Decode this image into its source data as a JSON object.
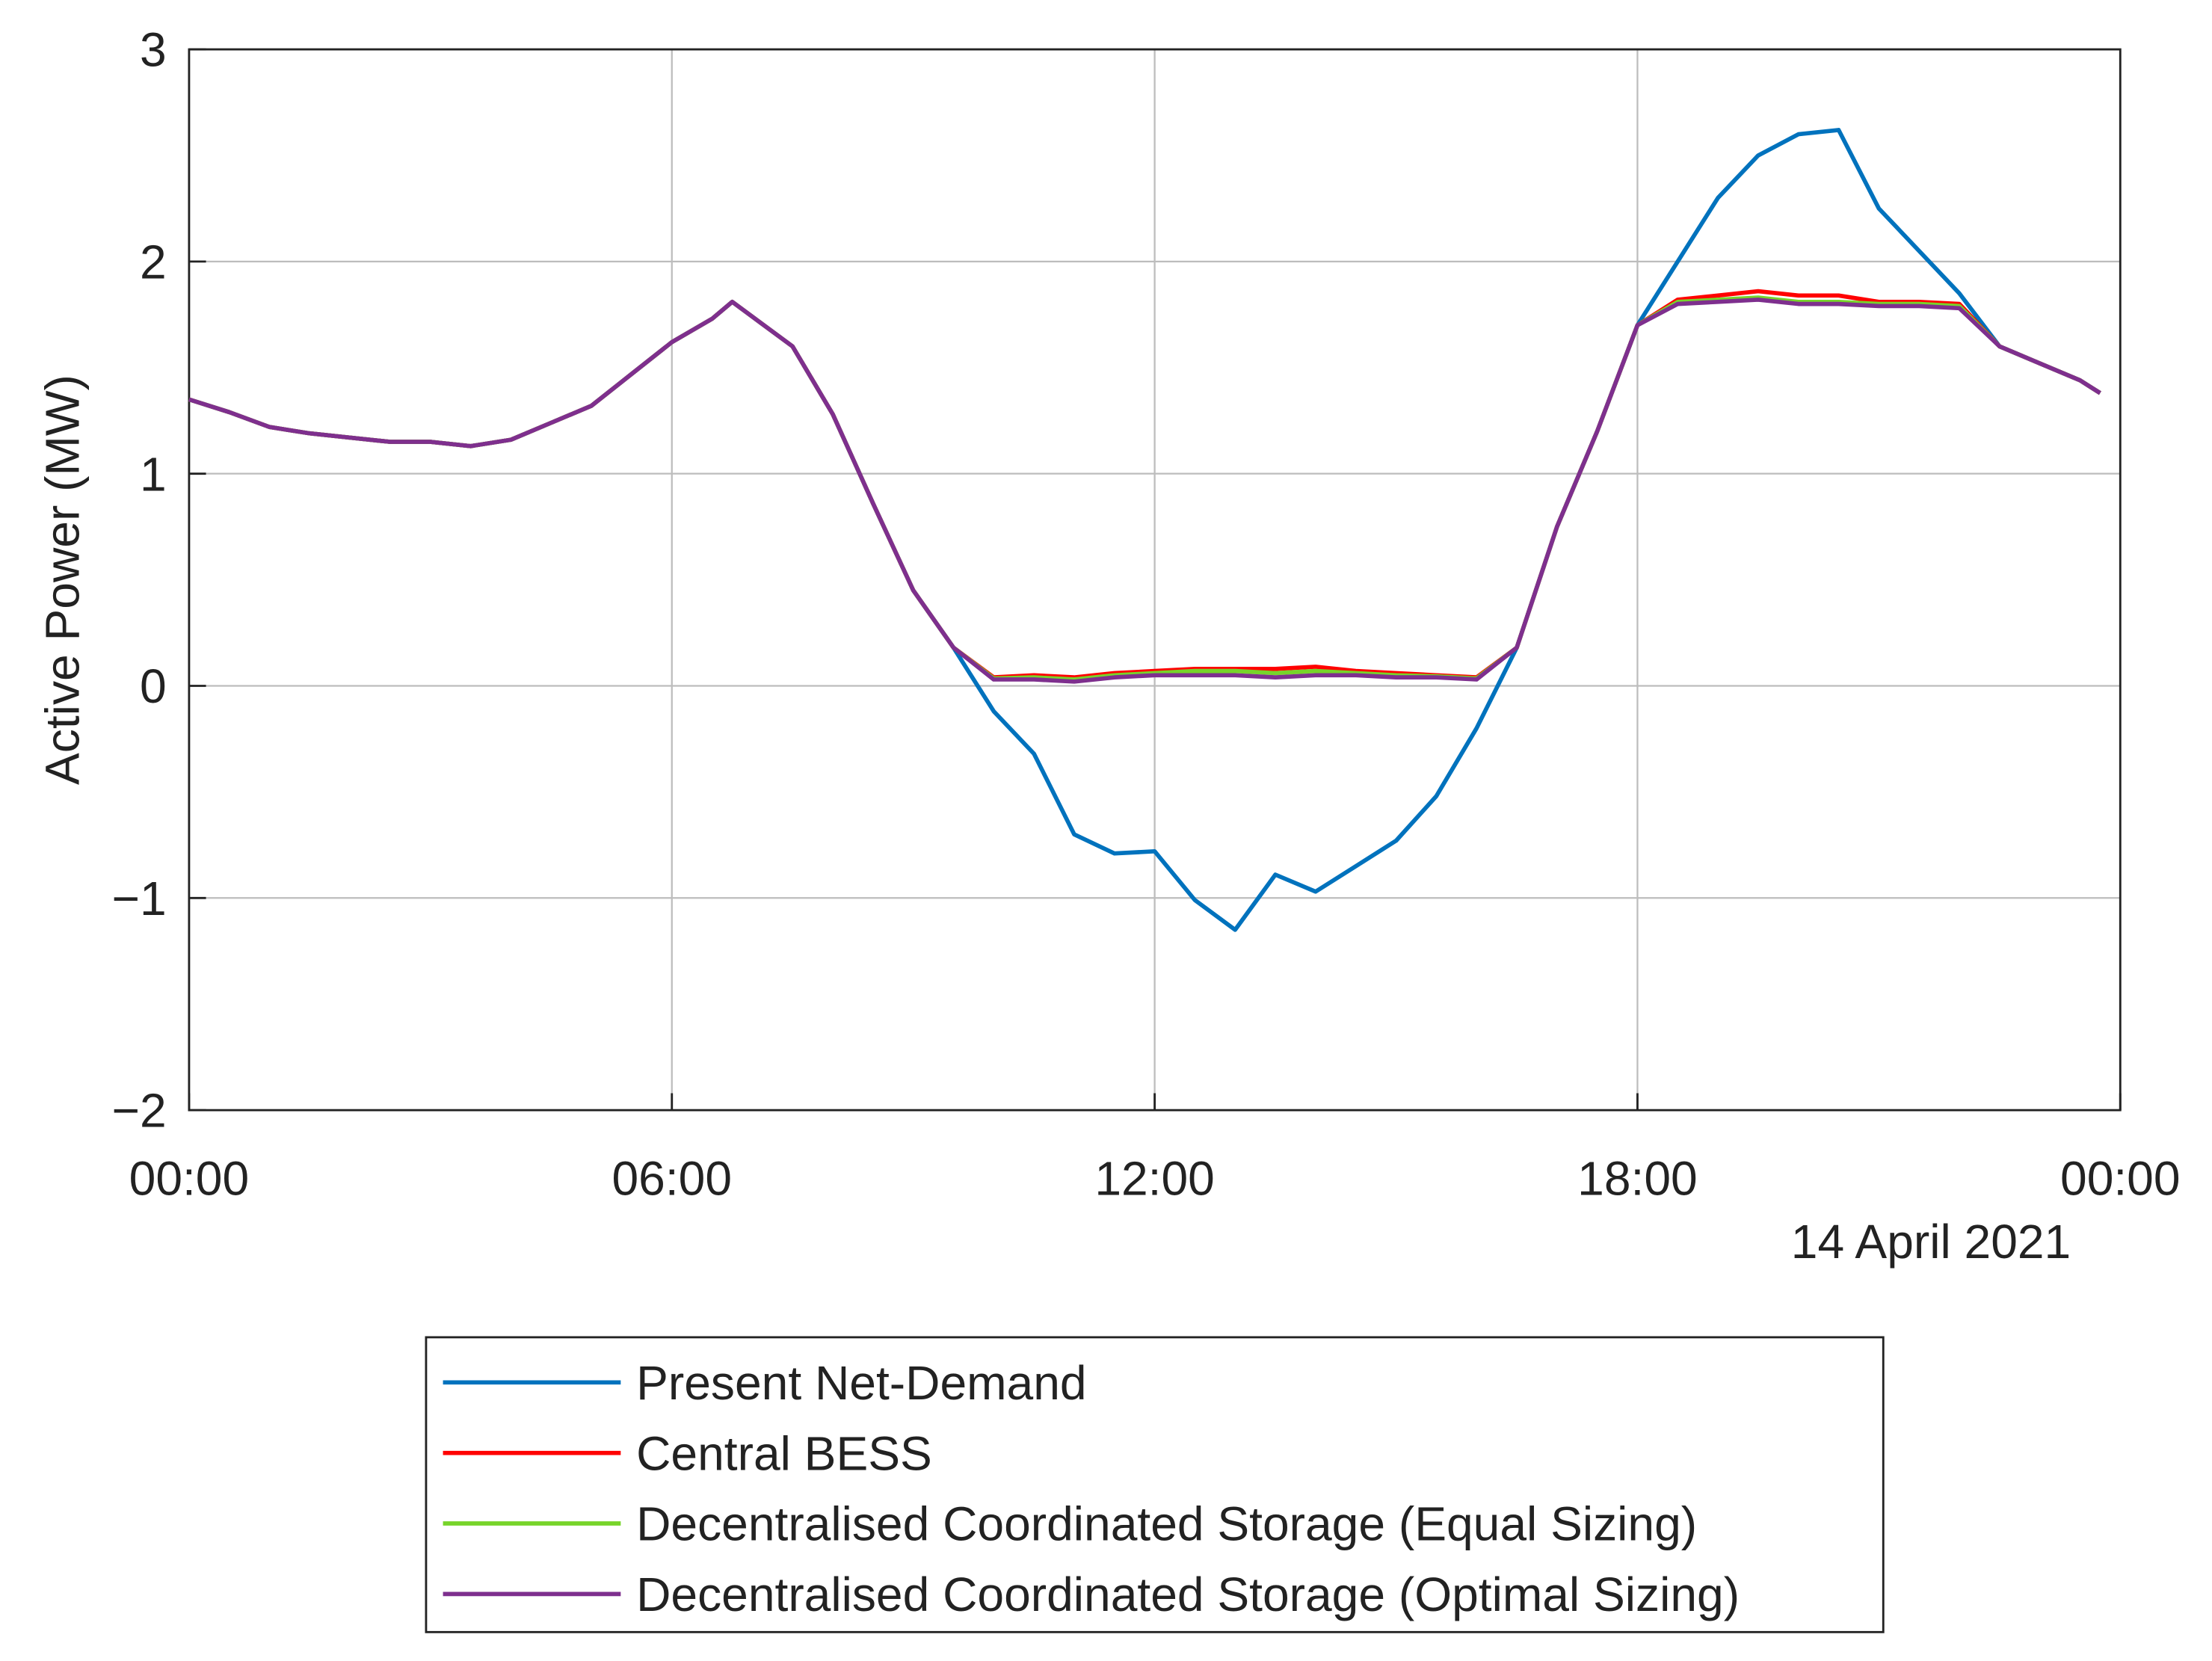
{
  "chart_data": {
    "type": "line",
    "ylabel": "Active Power (MW)",
    "date_label": "14 April 2021",
    "x": [
      0,
      0.5,
      1,
      1.5,
      2,
      2.5,
      3,
      3.5,
      4,
      4.5,
      5,
      5.5,
      6,
      6.5,
      6.75,
      7,
      7.5,
      8,
      8.5,
      9,
      9.5,
      10,
      10.5,
      11,
      11.5,
      12,
      12.5,
      13,
      13.5,
      14,
      14.5,
      15,
      15.5,
      16,
      16.5,
      17,
      17.5,
      18,
      18.5,
      19,
      19.5,
      20,
      20.5,
      21,
      21.5,
      22,
      22.5,
      23,
      23.5,
      23.75
    ],
    "xlim": [
      0,
      24
    ],
    "xticks": [
      {
        "value": 0,
        "label": "00:00"
      },
      {
        "value": 6,
        "label": "06:00"
      },
      {
        "value": 12,
        "label": "12:00"
      },
      {
        "value": 18,
        "label": "18:00"
      },
      {
        "value": 24,
        "label": "00:00"
      }
    ],
    "ylim": [
      -2,
      3
    ],
    "yticks": [
      {
        "value": -2,
        "label": "−2"
      },
      {
        "value": -1,
        "label": "−1"
      },
      0,
      1,
      2,
      3
    ],
    "grid": true,
    "series": [
      {
        "name": "Present Net-Demand",
        "color": "#0072bd",
        "values": [
          1.35,
          1.29,
          1.22,
          1.19,
          1.17,
          1.15,
          1.15,
          1.13,
          1.16,
          1.24,
          1.32,
          1.47,
          1.62,
          1.73,
          1.81,
          1.74,
          1.6,
          1.28,
          0.86,
          0.45,
          0.18,
          -0.12,
          -0.32,
          -0.7,
          -0.79,
          -0.78,
          -1.01,
          -1.15,
          -0.89,
          -0.97,
          -0.85,
          -0.73,
          -0.52,
          -0.2,
          0.18,
          0.75,
          1.2,
          1.7,
          2.0,
          2.3,
          2.5,
          2.6,
          2.62,
          2.25,
          2.05,
          1.85,
          1.6,
          1.52,
          1.44,
          1.38
        ]
      },
      {
        "name": "Central BESS",
        "color": "#ff0000",
        "values": [
          1.35,
          1.29,
          1.22,
          1.19,
          1.17,
          1.15,
          1.15,
          1.13,
          1.16,
          1.24,
          1.32,
          1.47,
          1.62,
          1.73,
          1.81,
          1.74,
          1.6,
          1.28,
          0.86,
          0.45,
          0.18,
          0.04,
          0.05,
          0.04,
          0.06,
          0.07,
          0.08,
          0.08,
          0.08,
          0.09,
          0.07,
          0.06,
          0.05,
          0.04,
          0.18,
          0.75,
          1.2,
          1.7,
          1.82,
          1.84,
          1.86,
          1.84,
          1.84,
          1.81,
          1.81,
          1.8,
          1.6,
          1.52,
          1.44,
          1.38
        ]
      },
      {
        "name": "Decentralised Coordinated Storage (Equal Sizing)",
        "color": "#77d42a",
        "values": [
          1.35,
          1.29,
          1.22,
          1.19,
          1.17,
          1.15,
          1.15,
          1.13,
          1.16,
          1.24,
          1.32,
          1.47,
          1.62,
          1.73,
          1.81,
          1.74,
          1.6,
          1.28,
          0.86,
          0.45,
          0.18,
          0.035,
          0.04,
          0.03,
          0.05,
          0.06,
          0.07,
          0.07,
          0.06,
          0.07,
          0.06,
          0.05,
          0.045,
          0.035,
          0.18,
          0.75,
          1.2,
          1.7,
          1.81,
          1.82,
          1.83,
          1.81,
          1.81,
          1.8,
          1.8,
          1.79,
          1.6,
          1.52,
          1.44,
          1.38
        ]
      },
      {
        "name": "Decentralised Coordinated Storage (Optimal Sizing)",
        "color": "#7e2f8e",
        "values": [
          1.35,
          1.29,
          1.22,
          1.19,
          1.17,
          1.15,
          1.15,
          1.13,
          1.16,
          1.24,
          1.32,
          1.47,
          1.62,
          1.73,
          1.81,
          1.74,
          1.6,
          1.28,
          0.86,
          0.45,
          0.18,
          0.03,
          0.03,
          0.02,
          0.04,
          0.05,
          0.05,
          0.05,
          0.04,
          0.05,
          0.05,
          0.04,
          0.04,
          0.03,
          0.18,
          0.75,
          1.2,
          1.7,
          1.8,
          1.81,
          1.82,
          1.8,
          1.8,
          1.79,
          1.79,
          1.78,
          1.6,
          1.52,
          1.44,
          1.38
        ]
      }
    ]
  }
}
